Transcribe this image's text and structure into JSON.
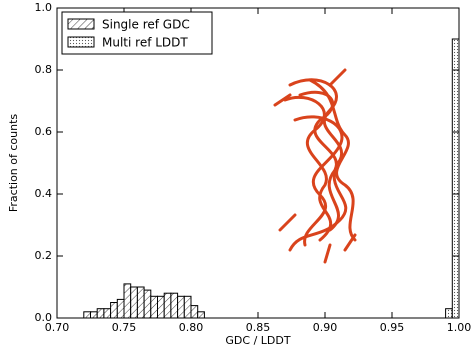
{
  "chart_data": {
    "type": "histogram",
    "xlabel": "GDC / LDDT",
    "ylabel": "Fraction of counts",
    "series": [
      {
        "name": "Single ref GDC",
        "color": "#000000",
        "hatch": "diagonal",
        "bins": [
          0.72,
          0.725,
          0.73,
          0.735,
          0.74,
          0.745,
          0.75,
          0.755,
          0.76,
          0.765,
          0.77,
          0.775,
          0.78,
          0.785,
          0.79,
          0.795,
          0.8,
          0.805,
          0.81
        ],
        "values": [
          0.02,
          0.02,
          0.03,
          0.03,
          0.05,
          0.06,
          0.11,
          0.1,
          0.1,
          0.09,
          0.07,
          0.07,
          0.08,
          0.08,
          0.07,
          0.07,
          0.04,
          0.02
        ]
      },
      {
        "name": "Multi ref LDDT",
        "color": "#000000",
        "hatch": "dots",
        "bins": [
          0.99,
          0.995,
          1.0
        ],
        "values": [
          0.03,
          0.9
        ]
      }
    ],
    "xlim": [
      0.7,
      1.0
    ],
    "xticks": [
      {
        "value": 0.7,
        "label": "0.70"
      },
      0.75,
      {
        "value": 0.8,
        "label": "0.80"
      },
      0.85,
      {
        "value": 0.9,
        "label": "0.90"
      },
      0.95,
      {
        "value": 1.0,
        "label": "1.00"
      }
    ],
    "ylim": [
      0,
      1
    ],
    "yticks": [
      {
        "value": 0,
        "label": "0.0"
      },
      0.2,
      0.4,
      0.6,
      0.8,
      {
        "value": 1,
        "label": "1.0"
      }
    ],
    "legend": "upper left"
  }
}
